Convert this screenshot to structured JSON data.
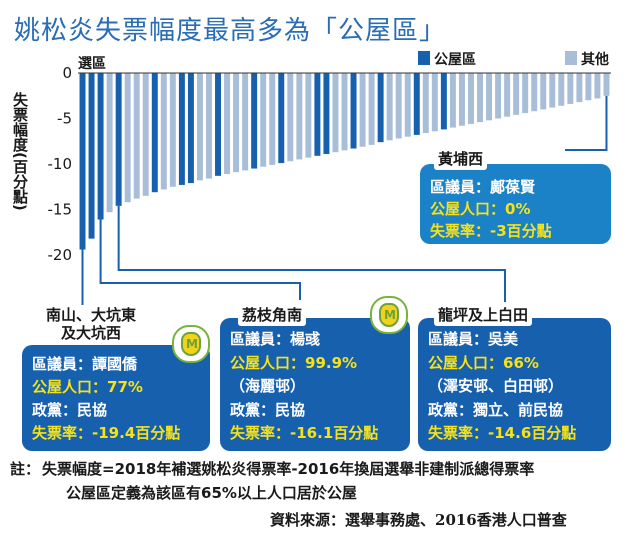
{
  "title": "姚松炎失票幅度最高多為「公屋區」",
  "legend": {
    "public": "公屋區",
    "other": "其他",
    "public_color": "#1760ae",
    "other_color": "#a8bed8"
  },
  "axis": {
    "ylabel": "失票幅度(百分點)",
    "xlabel": "選區"
  },
  "chart_data": {
    "type": "bar",
    "title": "姚松炎失票幅度最高多為「公屋區」",
    "xlabel": "選區",
    "ylabel": "失票幅度(百分點)",
    "ylim": [
      -20,
      0
    ],
    "yticks": [
      0,
      -5,
      -10,
      -15,
      -20
    ],
    "series": [
      {
        "name": "公屋區",
        "color": "#1760ae"
      },
      {
        "name": "其他",
        "color": "#a8bed8"
      }
    ],
    "values": [
      -19.4,
      -18.2,
      -16.1,
      -15.3,
      -14.6,
      -14.2,
      -13.8,
      -13.5,
      -13.1,
      -12.8,
      -12.5,
      -12.3,
      -12.1,
      -11.8,
      -11.6,
      -11.3,
      -11.1,
      -10.9,
      -10.7,
      -10.5,
      -10.3,
      -10.1,
      -9.9,
      -9.7,
      -9.5,
      -9.3,
      -9.1,
      -8.9,
      -8.7,
      -8.5,
      -8.3,
      -8.1,
      -7.9,
      -7.6,
      -7.4,
      -7.2,
      -7.0,
      -6.8,
      -6.6,
      -6.4,
      -6.2,
      -6.0,
      -5.8,
      -5.6,
      -5.4,
      -5.2,
      -5.0,
      -4.8,
      -4.6,
      -4.4,
      -4.2,
      -4.0,
      -3.8,
      -3.6,
      -3.4,
      -3.2,
      -3.0,
      -2.8,
      -2.5
    ],
    "groups": [
      "公屋區",
      "公屋區",
      "公屋區",
      "其他",
      "公屋區",
      "其他",
      "其他",
      "其他",
      "公屋區",
      "其他",
      "其他",
      "公屋區",
      "公屋區",
      "其他",
      "其他",
      "公屋區",
      "其他",
      "其他",
      "其他",
      "公屋區",
      "其他",
      "其他",
      "公屋區",
      "其他",
      "其他",
      "其他",
      "公屋區",
      "公屋區",
      "其他",
      "其他",
      "公屋區",
      "其他",
      "其他",
      "公屋區",
      "其他",
      "其他",
      "其他",
      "公屋區",
      "其他",
      "其他",
      "公屋區",
      "其他",
      "其他",
      "其他",
      "其他",
      "其他",
      "其他",
      "其他",
      "其他",
      "其他",
      "其他",
      "其他",
      "其他",
      "其他",
      "其他",
      "其他",
      "其他",
      "其他",
      "其他"
    ]
  },
  "callouts": {
    "c1": {
      "title_line1": "南山、大坑東",
      "title_line2": "及大坑西",
      "member_label": "區議員：",
      "member": "譚國僑",
      "public_label": "公屋人口：",
      "public_value": "77%",
      "party_label": "政黨：",
      "party": "民協",
      "loss_label": "失票率：",
      "loss_value": "-19.4百分點"
    },
    "c2": {
      "title_line1": "荔枝角南",
      "member_label": "區議員：",
      "member": "楊彧",
      "public_label": "公屋人口：",
      "public_value": "99.9%",
      "estate": "（海麗邨）",
      "party_label": "政黨：",
      "party": "民協",
      "loss_label": "失票率：",
      "loss_value": "-16.1百分點"
    },
    "c3": {
      "title_line1": "龍坪及上白田",
      "member_label": "區議員：",
      "member": "吳美",
      "public_label": "公屋人口：",
      "public_value": "66%",
      "estate": "（澤安邨、白田邨）",
      "party_label": "政黨：",
      "party": "獨立、前民協",
      "loss_label": "失票率：",
      "loss_value": "-14.6百分點"
    },
    "c4": {
      "title_line1": "黃埔西",
      "member_label": "區議員：",
      "member": "鄺葆賢",
      "public_label": "公屋人口：",
      "public_value": "0%",
      "loss_label": "失票率：",
      "loss_value": "-3百分點"
    }
  },
  "note": {
    "label": "註：",
    "line1": "失票幅度=2018年補選姚松炎得票率-2016年換屆選舉非建制派總得票率",
    "line2": "公屋區定義為該區有65%以上人口居於公屋"
  },
  "source": "資料來源：選舉事務處、2016香港人口普查"
}
